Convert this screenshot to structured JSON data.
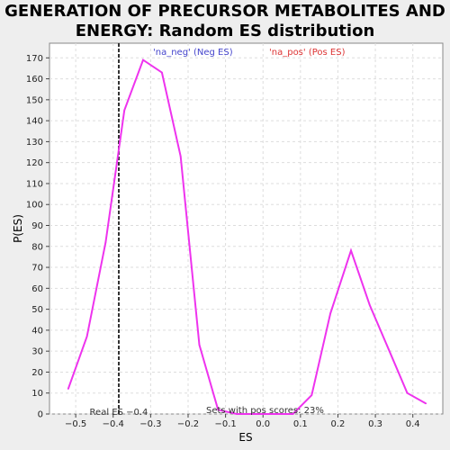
{
  "chart_data": {
    "type": "line",
    "title_lines": [
      "GENERATION OF PRECURSOR METABOLITES AND",
      "ENERGY: Random ES distribution"
    ],
    "xlabel": "ES",
    "ylabel": "P(ES)",
    "xlim": [
      -0.57,
      0.48
    ],
    "ylim": [
      0,
      177
    ],
    "x_ticks": [
      -0.5,
      -0.4,
      -0.3,
      -0.2,
      -0.1,
      0.0,
      0.1,
      0.2,
      0.3,
      0.4
    ],
    "x_tick_labels": [
      "−0.5",
      "−0.4",
      "−0.3",
      "−0.2",
      "−0.1",
      "0.0",
      "0.1",
      "0.2",
      "0.3",
      "0.4"
    ],
    "y_ticks": [
      0,
      10,
      20,
      30,
      40,
      50,
      60,
      70,
      80,
      90,
      100,
      110,
      120,
      130,
      140,
      150,
      160,
      170
    ],
    "grid": true,
    "series": [
      {
        "color": "#ee33ee",
        "x": [
          -0.52,
          -0.47,
          -0.42,
          -0.37,
          -0.32,
          -0.27,
          -0.22,
          -0.17,
          -0.12,
          -0.07,
          -0.02,
          0.03,
          0.08,
          0.13,
          0.18,
          0.235,
          0.285,
          0.335,
          0.385,
          0.435
        ],
        "y": [
          12,
          37,
          82,
          145,
          169,
          163,
          123,
          33,
          2,
          0,
          0,
          0,
          0,
          9,
          48,
          78,
          52,
          31,
          10,
          5
        ]
      }
    ],
    "legend": {
      "placement": "top",
      "entries": [
        {
          "label": "'na_neg' (Neg ES)",
          "color": "#4444cc"
        },
        {
          "label": "'na_pos' (Pos ES)",
          "color": "#dd3333"
        }
      ]
    },
    "vline": {
      "x": -0.385,
      "label": "Real ES −0.4"
    },
    "annotation": "Sets with pos scores: 23%"
  }
}
